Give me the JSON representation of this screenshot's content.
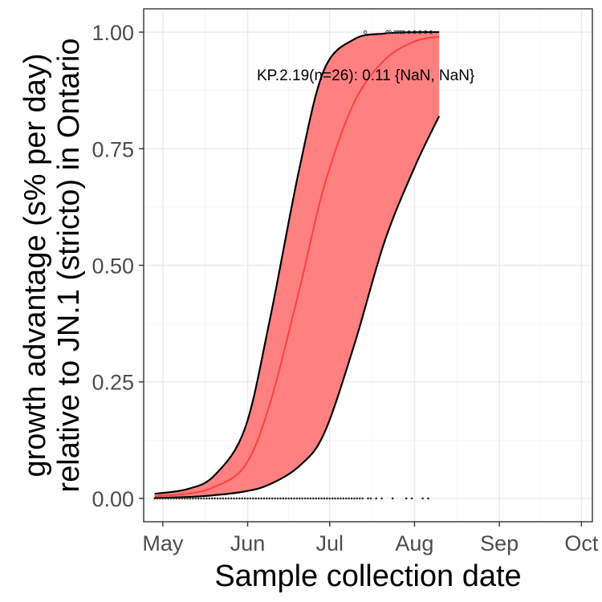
{
  "chart_data": {
    "type": "area",
    "xlabel": "Sample collection date",
    "ylabel_lines": [
      "growth advantage (s% per day)",
      "relative to JN.1 (stricto) in Ontario"
    ],
    "annotation": "KP.2.19(n=26): 0.11 {NaN, NaN}",
    "x_ticks": [
      "May",
      "Jun",
      "Jul",
      "Aug",
      "Sep",
      "Oct"
    ],
    "x_tick_dates": [
      "2024-05-01",
      "2024-06-01",
      "2024-07-01",
      "2024-08-01",
      "2024-09-01",
      "2024-10-01"
    ],
    "y_ticks": [
      "0.00",
      "0.25",
      "0.50",
      "0.75",
      "1.00"
    ],
    "y_tick_values": [
      0,
      0.25,
      0.5,
      0.75,
      1.0
    ],
    "xlim": [
      "2024-04-24",
      "2024-10-05"
    ],
    "ylim": [
      -0.05,
      1.05
    ],
    "grid": true,
    "colors": {
      "ribbon": "#ff8080",
      "fit_line": "#ff4040",
      "ribbon_edge": "#000000",
      "points": "#333333"
    },
    "series": [
      {
        "x": [
          "2024-04-28",
          "2024-05-10",
          "2024-05-20",
          "2024-05-31",
          "2024-06-09",
          "2024-06-20",
          "2024-06-29",
          "2024-07-10",
          "2024-07-21",
          "2024-08-01",
          "2024-08-10"
        ],
        "fit": [
          0.005,
          0.01,
          0.025,
          0.07,
          0.2,
          0.45,
          0.67,
          0.85,
          0.94,
          0.98,
          0.99
        ],
        "lower": [
          0.001,
          0.003,
          0.007,
          0.015,
          0.03,
          0.07,
          0.14,
          0.33,
          0.55,
          0.71,
          0.82
        ],
        "upper": [
          0.01,
          0.02,
          0.05,
          0.15,
          0.38,
          0.71,
          0.92,
          0.985,
          0.997,
          1.0,
          1.0
        ]
      }
    ],
    "observations_zero_dates": [
      "2024-04-28",
      "2024-04-29",
      "2024-04-30",
      "2024-05-01",
      "2024-05-02",
      "2024-05-03",
      "2024-05-04",
      "2024-05-05",
      "2024-05-06",
      "2024-05-07",
      "2024-05-08",
      "2024-05-09",
      "2024-05-10",
      "2024-05-11",
      "2024-05-12",
      "2024-05-13",
      "2024-05-14",
      "2024-05-15",
      "2024-05-16",
      "2024-05-17",
      "2024-05-18",
      "2024-05-19",
      "2024-05-20",
      "2024-05-21",
      "2024-05-22",
      "2024-05-23",
      "2024-05-24",
      "2024-05-25",
      "2024-05-26",
      "2024-05-27",
      "2024-05-28",
      "2024-05-29",
      "2024-05-30",
      "2024-05-31",
      "2024-06-01",
      "2024-06-02",
      "2024-06-03",
      "2024-06-04",
      "2024-06-05",
      "2024-06-06",
      "2024-06-07",
      "2024-06-08",
      "2024-06-09",
      "2024-06-10",
      "2024-06-11",
      "2024-06-12",
      "2024-06-13",
      "2024-06-14",
      "2024-06-15",
      "2024-06-16",
      "2024-06-17",
      "2024-06-18",
      "2024-06-19",
      "2024-06-20",
      "2024-06-21",
      "2024-06-22",
      "2024-06-23",
      "2024-06-24",
      "2024-06-25",
      "2024-06-26",
      "2024-06-27",
      "2024-06-28",
      "2024-06-29",
      "2024-06-30",
      "2024-07-01",
      "2024-07-02",
      "2024-07-03",
      "2024-07-04",
      "2024-07-05",
      "2024-07-06",
      "2024-07-07",
      "2024-07-08",
      "2024-07-09",
      "2024-07-10",
      "2024-07-11",
      "2024-07-12",
      "2024-07-13",
      "2024-07-15",
      "2024-07-16",
      "2024-07-18",
      "2024-07-20",
      "2024-07-24",
      "2024-07-29",
      "2024-07-31",
      "2024-08-04",
      "2024-08-06"
    ],
    "observations_one_dates": [
      "2024-07-14",
      "2024-07-22",
      "2024-07-23",
      "2024-07-25",
      "2024-07-26",
      "2024-07-27",
      "2024-07-28",
      "2024-07-30",
      "2024-08-01",
      "2024-08-03",
      "2024-08-05",
      "2024-08-07"
    ]
  }
}
